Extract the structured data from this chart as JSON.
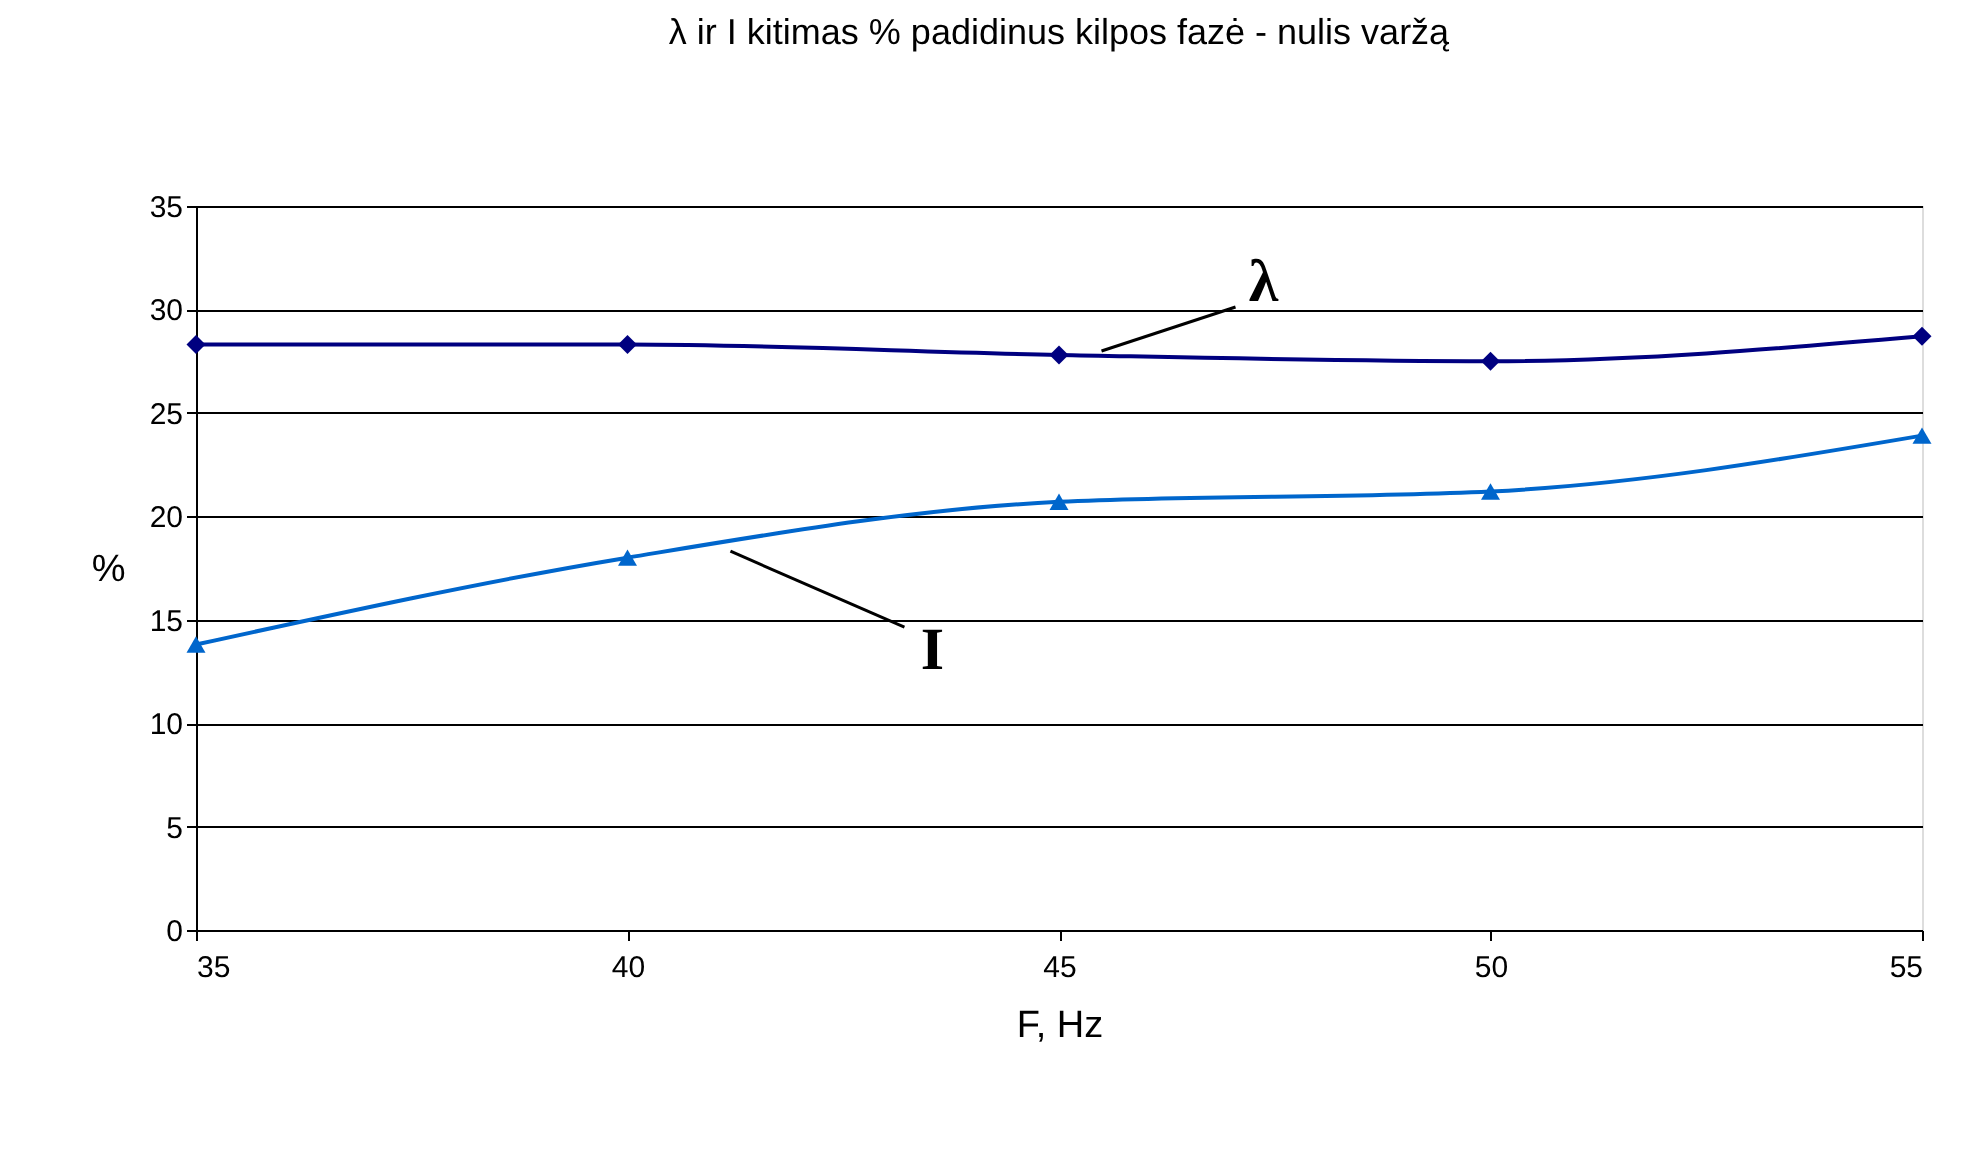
{
  "chart_data": {
    "type": "line",
    "title": "λ ir I kitimas % padidinus kilpos fazė - nulis varžą",
    "xlabel": "F, Hz",
    "ylabel": "%",
    "x": [
      35,
      40,
      45,
      50,
      55
    ],
    "series": [
      {
        "color": "#000080",
        "marker": "diamond",
        "values": [
          28.3,
          28.3,
          27.8,
          27.5,
          28.7
        ]
      },
      {
        "color": "#0066cc",
        "marker": "triangle",
        "values": [
          13.8,
          18.0,
          20.7,
          21.2,
          23.9
        ]
      }
    ],
    "xlim": [
      35,
      55
    ],
    "xticks": [
      35,
      40,
      45,
      50,
      55
    ],
    "ylim": [
      0,
      35
    ],
    "yticks": [
      0,
      5,
      10,
      15,
      20,
      25,
      30,
      35
    ],
    "grid": "y",
    "annotations": [
      {
        "text": "λ",
        "x": 45.4,
        "y": 27.7
      },
      {
        "text": "I",
        "x": 41.1,
        "y": 18.6
      }
    ]
  }
}
